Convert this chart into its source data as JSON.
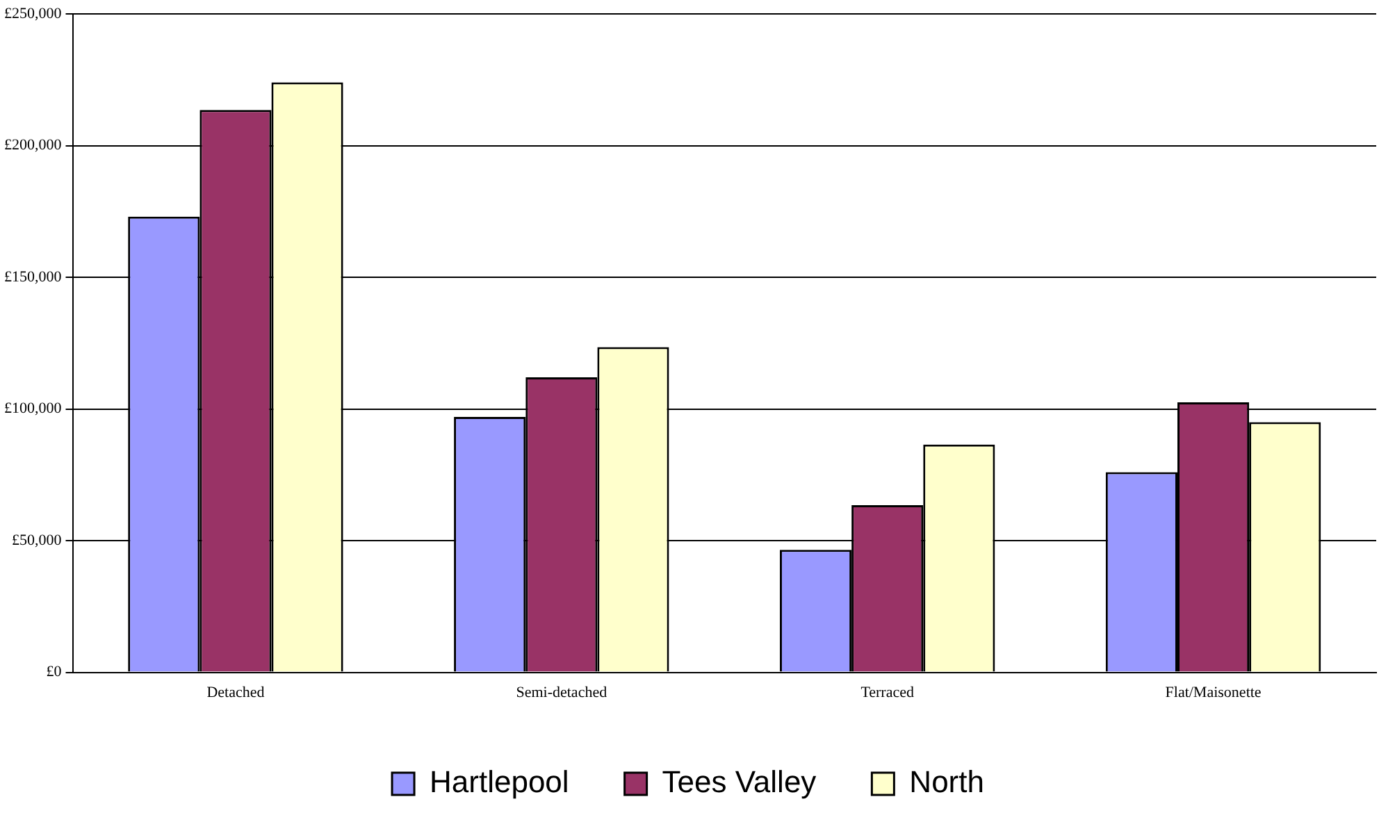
{
  "chart_data": {
    "type": "bar",
    "categories": [
      "Detached",
      "Semi-detached",
      "Terraced",
      "Flat/Maisonette"
    ],
    "series": [
      {
        "name": "Hartlepool",
        "color": "#9999ff",
        "values": [
          173000,
          97000,
          46500,
          76000
        ]
      },
      {
        "name": "Tees Valley",
        "color": "#993366",
        "values": [
          213500,
          112000,
          63500,
          102500
        ]
      },
      {
        "name": "North",
        "color": "#ffffcc",
        "values": [
          224000,
          123500,
          86500,
          95000
        ]
      }
    ],
    "ylim": [
      0,
      250000
    ],
    "yticks": [
      {
        "value": 0,
        "label": "£0"
      },
      {
        "value": 50000,
        "label": "£50,000"
      },
      {
        "value": 100000,
        "label": "£100,000"
      },
      {
        "value": 150000,
        "label": "£150,000"
      },
      {
        "value": 200000,
        "label": "£200,000"
      },
      {
        "value": 250000,
        "label": "£250,000"
      }
    ],
    "grid": "y",
    "legend": "bottom"
  }
}
